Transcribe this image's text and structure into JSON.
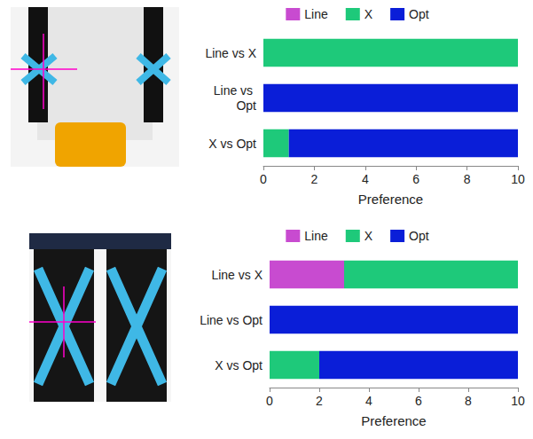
{
  "chart_data": [
    {
      "type": "bar",
      "orientation": "horizontal",
      "stacked": true,
      "grid": false,
      "legend": "top",
      "categories": [
        "Line vs X",
        "Line vs Opt",
        "X vs Opt"
      ],
      "series": [
        {
          "name": "Line",
          "color": "#c84bd0",
          "values": [
            0,
            0,
            0
          ]
        },
        {
          "name": "X",
          "color": "#1ec97a",
          "values": [
            10,
            0,
            1
          ]
        },
        {
          "name": "Opt",
          "color": "#0a1ed8",
          "values": [
            0,
            10,
            9
          ]
        }
      ],
      "xlabel": "Preference",
      "xlim": [
        0,
        10
      ],
      "xticks": [
        0,
        2,
        4,
        6,
        8,
        10
      ]
    },
    {
      "type": "bar",
      "orientation": "horizontal",
      "stacked": true,
      "grid": false,
      "legend": "top",
      "categories": [
        "Line vs X",
        "Line vs Opt",
        "X vs Opt"
      ],
      "series": [
        {
          "name": "Line",
          "color": "#c84bd0",
          "values": [
            3,
            0,
            0
          ]
        },
        {
          "name": "X",
          "color": "#1ec97a",
          "values": [
            7,
            0,
            2
          ]
        },
        {
          "name": "Opt",
          "color": "#0a1ed8",
          "values": [
            0,
            10,
            8
          ]
        }
      ],
      "xlabel": "Preference",
      "xlim": [
        0,
        10
      ],
      "xticks": [
        0,
        2,
        4,
        6,
        8,
        10
      ]
    }
  ]
}
